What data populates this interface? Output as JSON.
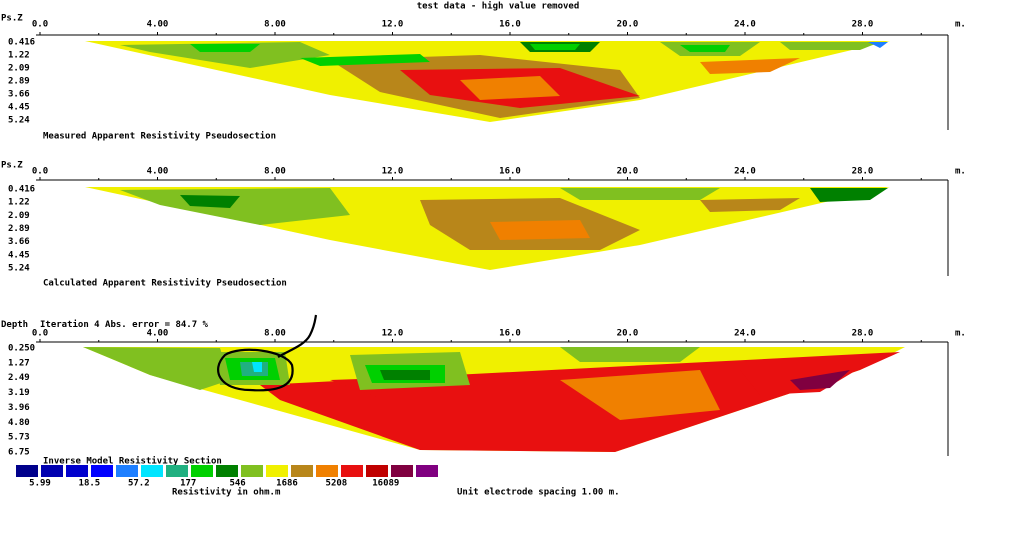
{
  "title": "test data - high value removed",
  "unit": "m.",
  "panels": [
    {
      "depth_label": "Ps.Z",
      "x_ticks": [
        "0.0",
        "4.00",
        "8.00",
        "12.0",
        "16.0",
        "20.0",
        "24.0",
        "28.0"
      ],
      "depth_ticks": [
        "0.416",
        "1.22",
        "2.09",
        "2.89",
        "3.66",
        "4.45",
        "5.24"
      ],
      "caption": "Measured Apparent Resistivity Pseudosection"
    },
    {
      "depth_label": "Ps.Z",
      "x_ticks": [
        "0.0",
        "4.00",
        "8.00",
        "12.0",
        "16.0",
        "20.0",
        "24.0",
        "28.0"
      ],
      "depth_ticks": [
        "0.416",
        "1.22",
        "2.09",
        "2.89",
        "3.66",
        "4.45",
        "5.24"
      ],
      "caption": "Calculated Apparent Resistivity Pseudosection"
    },
    {
      "depth_label": "Depth",
      "iteration": "Iteration 4 Abs. error = 84.7 %",
      "x_ticks": [
        "0.0",
        "4.00",
        "8.00",
        "12.0",
        "16.0",
        "20.0",
        "24.0",
        "28.0"
      ],
      "depth_ticks": [
        "0.250",
        "1.27",
        "2.49",
        "3.19",
        "3.96",
        "4.80",
        "5.73",
        "6.75"
      ],
      "caption": "Inverse Model Resistivity Section"
    }
  ],
  "legend": {
    "colors": [
      "#00008b",
      "#0000b0",
      "#0000cd",
      "#0000ff",
      "#1e7fff",
      "#00e5ff",
      "#20b080",
      "#00d000",
      "#008000",
      "#80c020",
      "#f0f000",
      "#b8861a",
      "#f08000",
      "#e81010",
      "#c00000",
      "#800040",
      "#800080"
    ],
    "labels": [
      "5.99",
      "18.5",
      "57.2",
      "177",
      "546",
      "1686",
      "5208",
      "16089"
    ],
    "title": "Resistivity in ohm.m"
  },
  "footer": "Unit electrode spacing 1.00 m."
}
